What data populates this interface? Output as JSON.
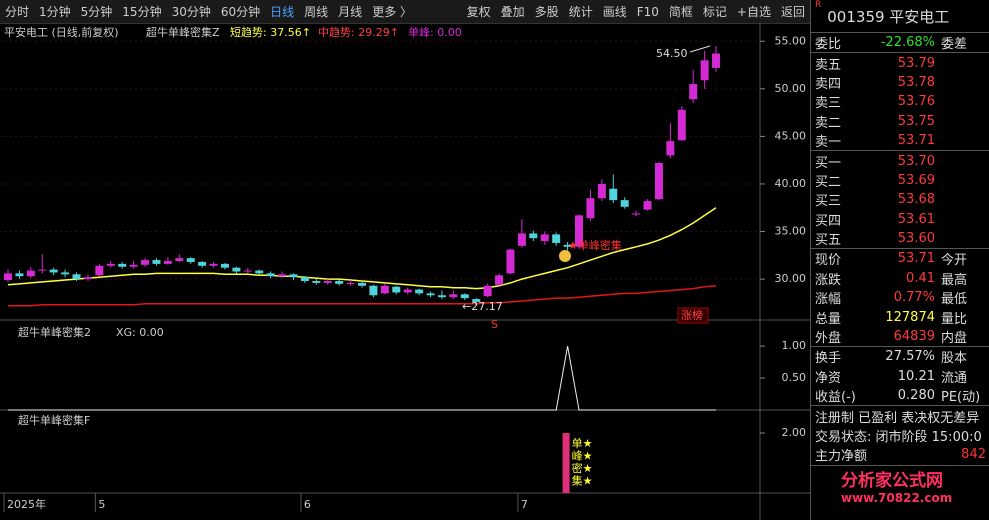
{
  "toolbar": {
    "tabs": [
      "分时",
      "1分钟",
      "5分钟",
      "15分钟",
      "30分钟",
      "60分钟",
      "日线",
      "周线",
      "月线",
      "更多 〉"
    ],
    "buttons": [
      "复权",
      "叠加",
      "多股",
      "统计",
      "画线",
      "F10",
      "简框",
      "标记",
      "+自选",
      "返回"
    ]
  },
  "chart": {
    "type": "candlestick",
    "title": "平安电工 (日线,前复权)",
    "indicator": "超牛单峰密集Z",
    "short_trend": "短趋势: 37.56↑",
    "mid_trend": "中趋势: 29.29↑",
    "single_peak": "单峰: 0.00",
    "categories": [
      "2025年",
      null,
      null,
      null,
      null,
      null,
      null,
      null,
      "5",
      null,
      null,
      null,
      null,
      null,
      null,
      null,
      null,
      null,
      null,
      null,
      null,
      null,
      null,
      null,
      null,
      null,
      "6",
      null,
      null,
      null,
      null,
      null,
      null,
      null,
      null,
      null,
      null,
      null,
      null,
      null,
      null,
      null,
      null,
      null,
      null,
      "7",
      null,
      null,
      null,
      null,
      null,
      null,
      null,
      null,
      null,
      null,
      null,
      null,
      null,
      null,
      null,
      null,
      null
    ],
    "candles": [
      [
        29.9,
        30.6,
        31.0,
        29.7
      ],
      [
        30.6,
        30.3,
        30.9,
        30.0
      ],
      [
        30.3,
        30.9,
        31.3,
        30.1
      ],
      [
        30.9,
        31.0,
        32.6,
        30.6
      ],
      [
        31.0,
        30.7,
        31.2,
        30.4
      ],
      [
        30.7,
        30.5,
        31.0,
        30.2
      ],
      [
        30.5,
        30.0,
        30.7,
        29.8
      ],
      [
        30.0,
        30.2,
        30.5,
        29.8
      ],
      [
        30.4,
        31.4,
        31.6,
        30.3
      ],
      [
        31.4,
        31.6,
        31.9,
        31.2
      ],
      [
        31.6,
        31.3,
        31.8,
        31.1
      ],
      [
        31.3,
        31.5,
        31.9,
        31.1
      ],
      [
        31.5,
        32.0,
        32.2,
        31.3
      ],
      [
        32.0,
        31.6,
        32.2,
        31.4
      ],
      [
        31.6,
        31.9,
        32.3,
        31.5
      ],
      [
        31.9,
        32.2,
        32.6,
        31.8
      ],
      [
        32.2,
        31.8,
        32.3,
        31.6
      ],
      [
        31.8,
        31.4,
        31.9,
        31.2
      ],
      [
        31.4,
        31.6,
        31.8,
        31.2
      ],
      [
        31.6,
        31.2,
        31.7,
        31.0
      ],
      [
        31.2,
        30.8,
        31.3,
        30.6
      ],
      [
        30.8,
        30.9,
        31.2,
        30.6
      ],
      [
        30.9,
        30.6,
        31.0,
        30.4
      ],
      [
        30.6,
        30.3,
        30.8,
        30.1
      ],
      [
        30.3,
        30.5,
        30.8,
        30.1
      ],
      [
        30.5,
        30.2,
        30.6,
        29.9
      ],
      [
        30.2,
        29.8,
        30.3,
        29.6
      ],
      [
        29.8,
        29.6,
        30.0,
        29.4
      ],
      [
        29.6,
        29.8,
        30.0,
        29.4
      ],
      [
        29.8,
        29.5,
        29.9,
        29.3
      ],
      [
        29.5,
        29.6,
        29.9,
        29.3
      ],
      [
        29.6,
        29.3,
        29.7,
        29.1
      ],
      [
        29.3,
        28.3,
        29.4,
        28.1
      ],
      [
        28.5,
        29.3,
        29.5,
        28.4
      ],
      [
        29.2,
        28.6,
        29.3,
        28.4
      ],
      [
        28.6,
        28.9,
        29.1,
        28.4
      ],
      [
        28.9,
        28.5,
        29.0,
        28.3
      ],
      [
        28.5,
        28.3,
        28.7,
        28.1
      ],
      [
        28.3,
        28.1,
        28.8,
        27.9
      ],
      [
        28.1,
        28.4,
        28.8,
        27.9
      ],
      [
        28.4,
        28.0,
        28.5,
        27.8
      ],
      [
        27.9,
        27.6,
        28.0,
        27.17
      ],
      [
        28.2,
        29.3,
        29.5,
        28.1
      ],
      [
        29.4,
        30.4,
        30.6,
        29.3
      ],
      [
        30.6,
        33.1,
        33.2,
        30.5
      ],
      [
        33.5,
        34.8,
        36.3,
        33.3
      ],
      [
        34.8,
        34.3,
        35.1,
        34.0
      ],
      [
        34.0,
        34.7,
        35.0,
        33.6
      ],
      [
        34.7,
        33.8,
        34.9,
        33.5
      ],
      [
        33.6,
        33.4,
        33.9,
        33.0
      ],
      [
        33.4,
        36.7,
        36.8,
        33.2
      ],
      [
        36.4,
        38.5,
        39.4,
        36.1
      ],
      [
        38.5,
        40.0,
        40.5,
        38.2
      ],
      [
        39.5,
        38.3,
        41.0,
        38.0
      ],
      [
        38.3,
        37.6,
        38.6,
        37.4
      ],
      [
        36.9,
        36.9,
        37.2,
        36.6
      ],
      [
        37.3,
        38.2,
        38.4,
        37.2
      ],
      [
        38.4,
        42.2,
        42.3,
        38.3
      ],
      [
        43.0,
        44.5,
        46.4,
        42.7
      ],
      [
        44.6,
        47.8,
        48.2,
        44.5
      ],
      [
        48.9,
        50.5,
        52.0,
        48.5
      ],
      [
        50.9,
        53.0,
        54.0,
        50.0
      ],
      [
        52.2,
        53.71,
        54.5,
        51.8
      ]
    ],
    "up_color": "#d42ad4",
    "down_color": "#4fd3dc",
    "lines": [
      {
        "color": "#ffff40",
        "values": [
          29.4,
          29.5,
          29.6,
          29.7,
          29.8,
          29.9,
          30.0,
          30.1,
          30.2,
          30.3,
          30.4,
          30.5,
          30.5,
          30.6,
          30.6,
          30.6,
          30.6,
          30.6,
          30.6,
          30.5,
          30.5,
          30.5,
          30.4,
          30.4,
          30.3,
          30.3,
          30.2,
          30.1,
          30.0,
          30.0,
          29.9,
          29.8,
          29.7,
          29.6,
          29.5,
          29.4,
          29.3,
          29.2,
          29.2,
          29.1,
          29.1,
          29.0,
          29.1,
          29.3,
          29.6,
          30.0,
          30.3,
          30.6,
          30.9,
          31.2,
          31.6,
          32.0,
          32.4,
          32.8,
          33.1,
          33.4,
          33.7,
          34.1,
          34.6,
          35.2,
          35.9,
          36.7,
          37.5
        ]
      },
      {
        "color": "#e01818",
        "values": [
          27.2,
          27.2,
          27.2,
          27.3,
          27.3,
          27.3,
          27.3,
          27.3,
          27.3,
          27.3,
          27.3,
          27.3,
          27.4,
          27.4,
          27.4,
          27.4,
          27.4,
          27.4,
          27.4,
          27.4,
          27.4,
          27.4,
          27.4,
          27.4,
          27.4,
          27.4,
          27.4,
          27.4,
          27.4,
          27.4,
          27.4,
          27.4,
          27.4,
          27.4,
          27.4,
          27.4,
          27.4,
          27.4,
          27.4,
          27.4,
          27.4,
          27.4,
          27.5,
          27.5,
          27.6,
          27.7,
          27.8,
          27.9,
          28.0,
          28.0,
          28.1,
          28.2,
          28.3,
          28.4,
          28.5,
          28.5,
          28.6,
          28.7,
          28.8,
          28.9,
          29.0,
          29.2,
          29.3
        ]
      }
    ],
    "ylim": [
      25.7,
      56.5
    ],
    "yticks": [
      {
        "value": 30,
        "label": "30.00"
      },
      {
        "value": 35,
        "label": "35.00"
      },
      {
        "value": 40,
        "label": "40.00"
      },
      {
        "value": 45,
        "label": "45.00"
      },
      {
        "value": 50,
        "label": "50.00"
      },
      {
        "value": 55,
        "label": "55.00"
      }
    ],
    "high_label": "54.50",
    "low_label": "←27.17",
    "signal_label": "★单峰密集",
    "sell_mark": "S",
    "badge": "涨榜"
  },
  "panel2": {
    "title": "超牛单峰密集2",
    "reading": "XG: 0.00",
    "values": [
      0,
      0,
      0,
      0,
      0,
      0,
      0,
      0,
      0,
      0,
      0,
      0,
      0,
      0,
      0,
      0,
      0,
      0,
      0,
      0,
      0,
      0,
      0,
      0,
      0,
      0,
      0,
      0,
      0,
      0,
      0,
      0,
      0,
      0,
      0,
      0,
      0,
      0,
      0,
      0,
      0,
      0,
      0,
      0,
      0,
      0,
      0,
      0,
      0,
      1,
      0,
      0,
      0,
      0,
      0,
      0,
      0,
      0,
      0,
      0,
      0,
      0,
      0
    ],
    "ylim": [
      0,
      1.33
    ],
    "yticks": [
      {
        "value": 0.5,
        "label": "0.50"
      },
      {
        "value": 1,
        "label": "1.00"
      }
    ]
  },
  "panel3": {
    "title": "超牛单峰密集F",
    "value": 2,
    "bar_index": 49,
    "stars": [
      "单★",
      "峰★",
      "密★",
      "集★"
    ],
    "ylim": [
      0,
      2.6
    ],
    "yticks": [
      {
        "value": 2,
        "label": "2.00"
      }
    ]
  },
  "quote": {
    "flag": "R",
    "header": "001359 平安电工",
    "weibi": [
      "委比",
      "-22.68%",
      "委差"
    ],
    "asks": [
      [
        "卖五",
        "53.79"
      ],
      [
        "卖四",
        "53.78"
      ],
      [
        "卖三",
        "53.76"
      ],
      [
        "卖二",
        "53.75"
      ],
      [
        "卖一",
        "53.71"
      ]
    ],
    "bids": [
      [
        "买一",
        "53.70"
      ],
      [
        "买二",
        "53.69"
      ],
      [
        "买三",
        "53.68"
      ],
      [
        "买四",
        "53.61"
      ],
      [
        "买五",
        "53.60"
      ]
    ],
    "stats": [
      [
        "现价",
        "53.71",
        "今开"
      ],
      [
        "涨跌",
        "0.41",
        "最高"
      ],
      [
        "涨幅",
        "0.77%",
        "最低"
      ],
      [
        "总量",
        "127874",
        "量比"
      ],
      [
        "外盘",
        "64839",
        "内盘"
      ]
    ],
    "stats2": [
      [
        "换手",
        "27.57%",
        "股本"
      ],
      [
        "净资",
        "10.21",
        "流通"
      ],
      [
        "收益(-)",
        "0.280",
        "PE(动)"
      ]
    ],
    "tags": "注册制 已盈利 表决权无差异",
    "status": "交易状态: 闭市阶段 15:00:0",
    "net": [
      "主力净额",
      "842"
    ],
    "watermark": "分析家公式网",
    "watermark_url": "www.70822.com"
  }
}
